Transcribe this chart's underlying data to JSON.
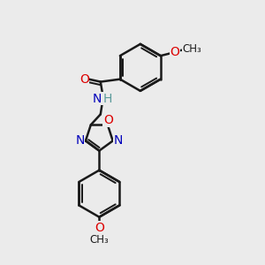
{
  "bg_color": "#ebebeb",
  "bond_color": "#1a1a1a",
  "bond_width": 1.8,
  "atom_colors": {
    "O": "#dd0000",
    "N": "#0000bb",
    "H": "#5a9a9a",
    "C": "#1a1a1a"
  },
  "font_size_atom": 10,
  "font_size_small": 9
}
